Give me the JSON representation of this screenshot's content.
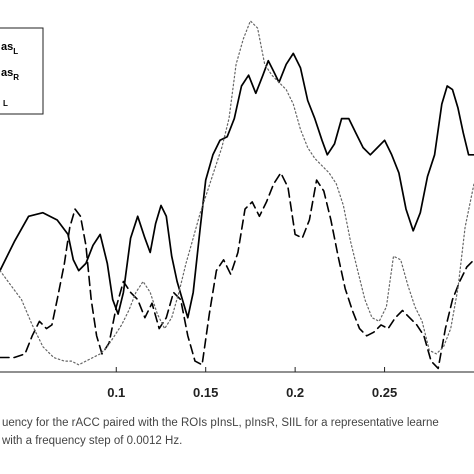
{
  "chart_data": {
    "type": "line",
    "xlabel": "",
    "ylabel": "",
    "xlim": [
      0.035,
      0.3
    ],
    "ylim": [
      0,
      1
    ],
    "xticks": [
      "0.1",
      "0.15",
      "0.2",
      "0.25"
    ],
    "xtick_values": [
      0.1,
      0.15,
      0.2,
      0.25
    ],
    "legend": {
      "placement": "top-left",
      "entries": [
        {
          "text": "as",
          "sub": "L"
        },
        {
          "text": "as",
          "sub": "R"
        },
        {
          "text": "",
          "sub": "L"
        }
      ]
    },
    "series": [
      {
        "style": "solid",
        "x": [
          0.035,
          0.043,
          0.051,
          0.059,
          0.067,
          0.073,
          0.076,
          0.079,
          0.083,
          0.087,
          0.091,
          0.095,
          0.098,
          0.101,
          0.104,
          0.108,
          0.112,
          0.116,
          0.119,
          0.122,
          0.125,
          0.128,
          0.131,
          0.134,
          0.137,
          0.14,
          0.143,
          0.147,
          0.15,
          0.154,
          0.158,
          0.162,
          0.166,
          0.17,
          0.174,
          0.178,
          0.182,
          0.185,
          0.188,
          0.191,
          0.195,
          0.199,
          0.203,
          0.207,
          0.211,
          0.215,
          0.218,
          0.222,
          0.226,
          0.23,
          0.234,
          0.238,
          0.242,
          0.246,
          0.25,
          0.254,
          0.258,
          0.262,
          0.266,
          0.27,
          0.274,
          0.278,
          0.282,
          0.285,
          0.288,
          0.291,
          0.294,
          0.297,
          0.3
        ],
        "y": [
          0.28,
          0.36,
          0.43,
          0.44,
          0.42,
          0.38,
          0.31,
          0.28,
          0.3,
          0.35,
          0.38,
          0.3,
          0.2,
          0.16,
          0.22,
          0.37,
          0.43,
          0.37,
          0.33,
          0.41,
          0.46,
          0.43,
          0.32,
          0.25,
          0.2,
          0.15,
          0.22,
          0.4,
          0.53,
          0.6,
          0.64,
          0.65,
          0.7,
          0.79,
          0.82,
          0.77,
          0.82,
          0.86,
          0.83,
          0.8,
          0.85,
          0.88,
          0.84,
          0.75,
          0.7,
          0.64,
          0.6,
          0.63,
          0.7,
          0.7,
          0.66,
          0.62,
          0.6,
          0.62,
          0.64,
          0.6,
          0.55,
          0.45,
          0.39,
          0.44,
          0.54,
          0.6,
          0.74,
          0.79,
          0.78,
          0.73,
          0.66,
          0.6,
          0.6
        ]
      },
      {
        "style": "dashed",
        "x": [
          0.035,
          0.043,
          0.049,
          0.053,
          0.057,
          0.061,
          0.064,
          0.067,
          0.071,
          0.074,
          0.077,
          0.08,
          0.083,
          0.086,
          0.089,
          0.092,
          0.096,
          0.1,
          0.104,
          0.108,
          0.112,
          0.116,
          0.12,
          0.124,
          0.128,
          0.132,
          0.136,
          0.14,
          0.144,
          0.148,
          0.152,
          0.156,
          0.16,
          0.164,
          0.168,
          0.172,
          0.176,
          0.18,
          0.184,
          0.188,
          0.192,
          0.196,
          0.2,
          0.204,
          0.208,
          0.212,
          0.216,
          0.22,
          0.224,
          0.228,
          0.232,
          0.236,
          0.24,
          0.244,
          0.248,
          0.252,
          0.256,
          0.26,
          0.264,
          0.268,
          0.272,
          0.276,
          0.28,
          0.284,
          0.288,
          0.292,
          0.296,
          0.3
        ],
        "y": [
          0.04,
          0.04,
          0.05,
          0.1,
          0.14,
          0.12,
          0.13,
          0.2,
          0.3,
          0.4,
          0.45,
          0.43,
          0.35,
          0.2,
          0.1,
          0.05,
          0.08,
          0.18,
          0.25,
          0.22,
          0.2,
          0.15,
          0.19,
          0.12,
          0.15,
          0.22,
          0.2,
          0.1,
          0.03,
          0.02,
          0.16,
          0.28,
          0.31,
          0.27,
          0.33,
          0.45,
          0.47,
          0.43,
          0.47,
          0.52,
          0.55,
          0.51,
          0.38,
          0.37,
          0.42,
          0.53,
          0.5,
          0.42,
          0.32,
          0.23,
          0.17,
          0.12,
          0.1,
          0.11,
          0.13,
          0.12,
          0.15,
          0.17,
          0.15,
          0.13,
          0.1,
          0.03,
          0.01,
          0.12,
          0.2,
          0.25,
          0.29,
          0.31
        ]
      },
      {
        "style": "dotted",
        "x": [
          0.035,
          0.041,
          0.047,
          0.053,
          0.059,
          0.065,
          0.071,
          0.075,
          0.079,
          0.083,
          0.087,
          0.091,
          0.095,
          0.099,
          0.103,
          0.107,
          0.111,
          0.115,
          0.119,
          0.123,
          0.127,
          0.131,
          0.135,
          0.139,
          0.143,
          0.147,
          0.151,
          0.155,
          0.159,
          0.163,
          0.167,
          0.171,
          0.175,
          0.179,
          0.183,
          0.187,
          0.191,
          0.195,
          0.199,
          0.203,
          0.207,
          0.211,
          0.215,
          0.219,
          0.223,
          0.227,
          0.231,
          0.235,
          0.239,
          0.243,
          0.247,
          0.251,
          0.255,
          0.259,
          0.263,
          0.267,
          0.271,
          0.275,
          0.279,
          0.283,
          0.287,
          0.291,
          0.295,
          0.3
        ],
        "y": [
          0.28,
          0.24,
          0.2,
          0.13,
          0.07,
          0.04,
          0.03,
          0.03,
          0.02,
          0.03,
          0.04,
          0.05,
          0.07,
          0.1,
          0.13,
          0.17,
          0.22,
          0.25,
          0.22,
          0.16,
          0.12,
          0.15,
          0.22,
          0.3,
          0.37,
          0.44,
          0.5,
          0.56,
          0.62,
          0.7,
          0.85,
          0.92,
          0.97,
          0.95,
          0.85,
          0.82,
          0.8,
          0.78,
          0.74,
          0.67,
          0.62,
          0.59,
          0.57,
          0.55,
          0.52,
          0.46,
          0.36,
          0.28,
          0.2,
          0.15,
          0.14,
          0.18,
          0.32,
          0.31,
          0.24,
          0.18,
          0.14,
          0.06,
          0.05,
          0.07,
          0.12,
          0.23,
          0.4,
          0.52
        ]
      }
    ]
  },
  "caption": {
    "line1": "uency for the rACC paired with the ROIs pInsL, pInsR, SIIL for a representative learne",
    "line2": "with a frequency step of 0.0012 Hz."
  }
}
